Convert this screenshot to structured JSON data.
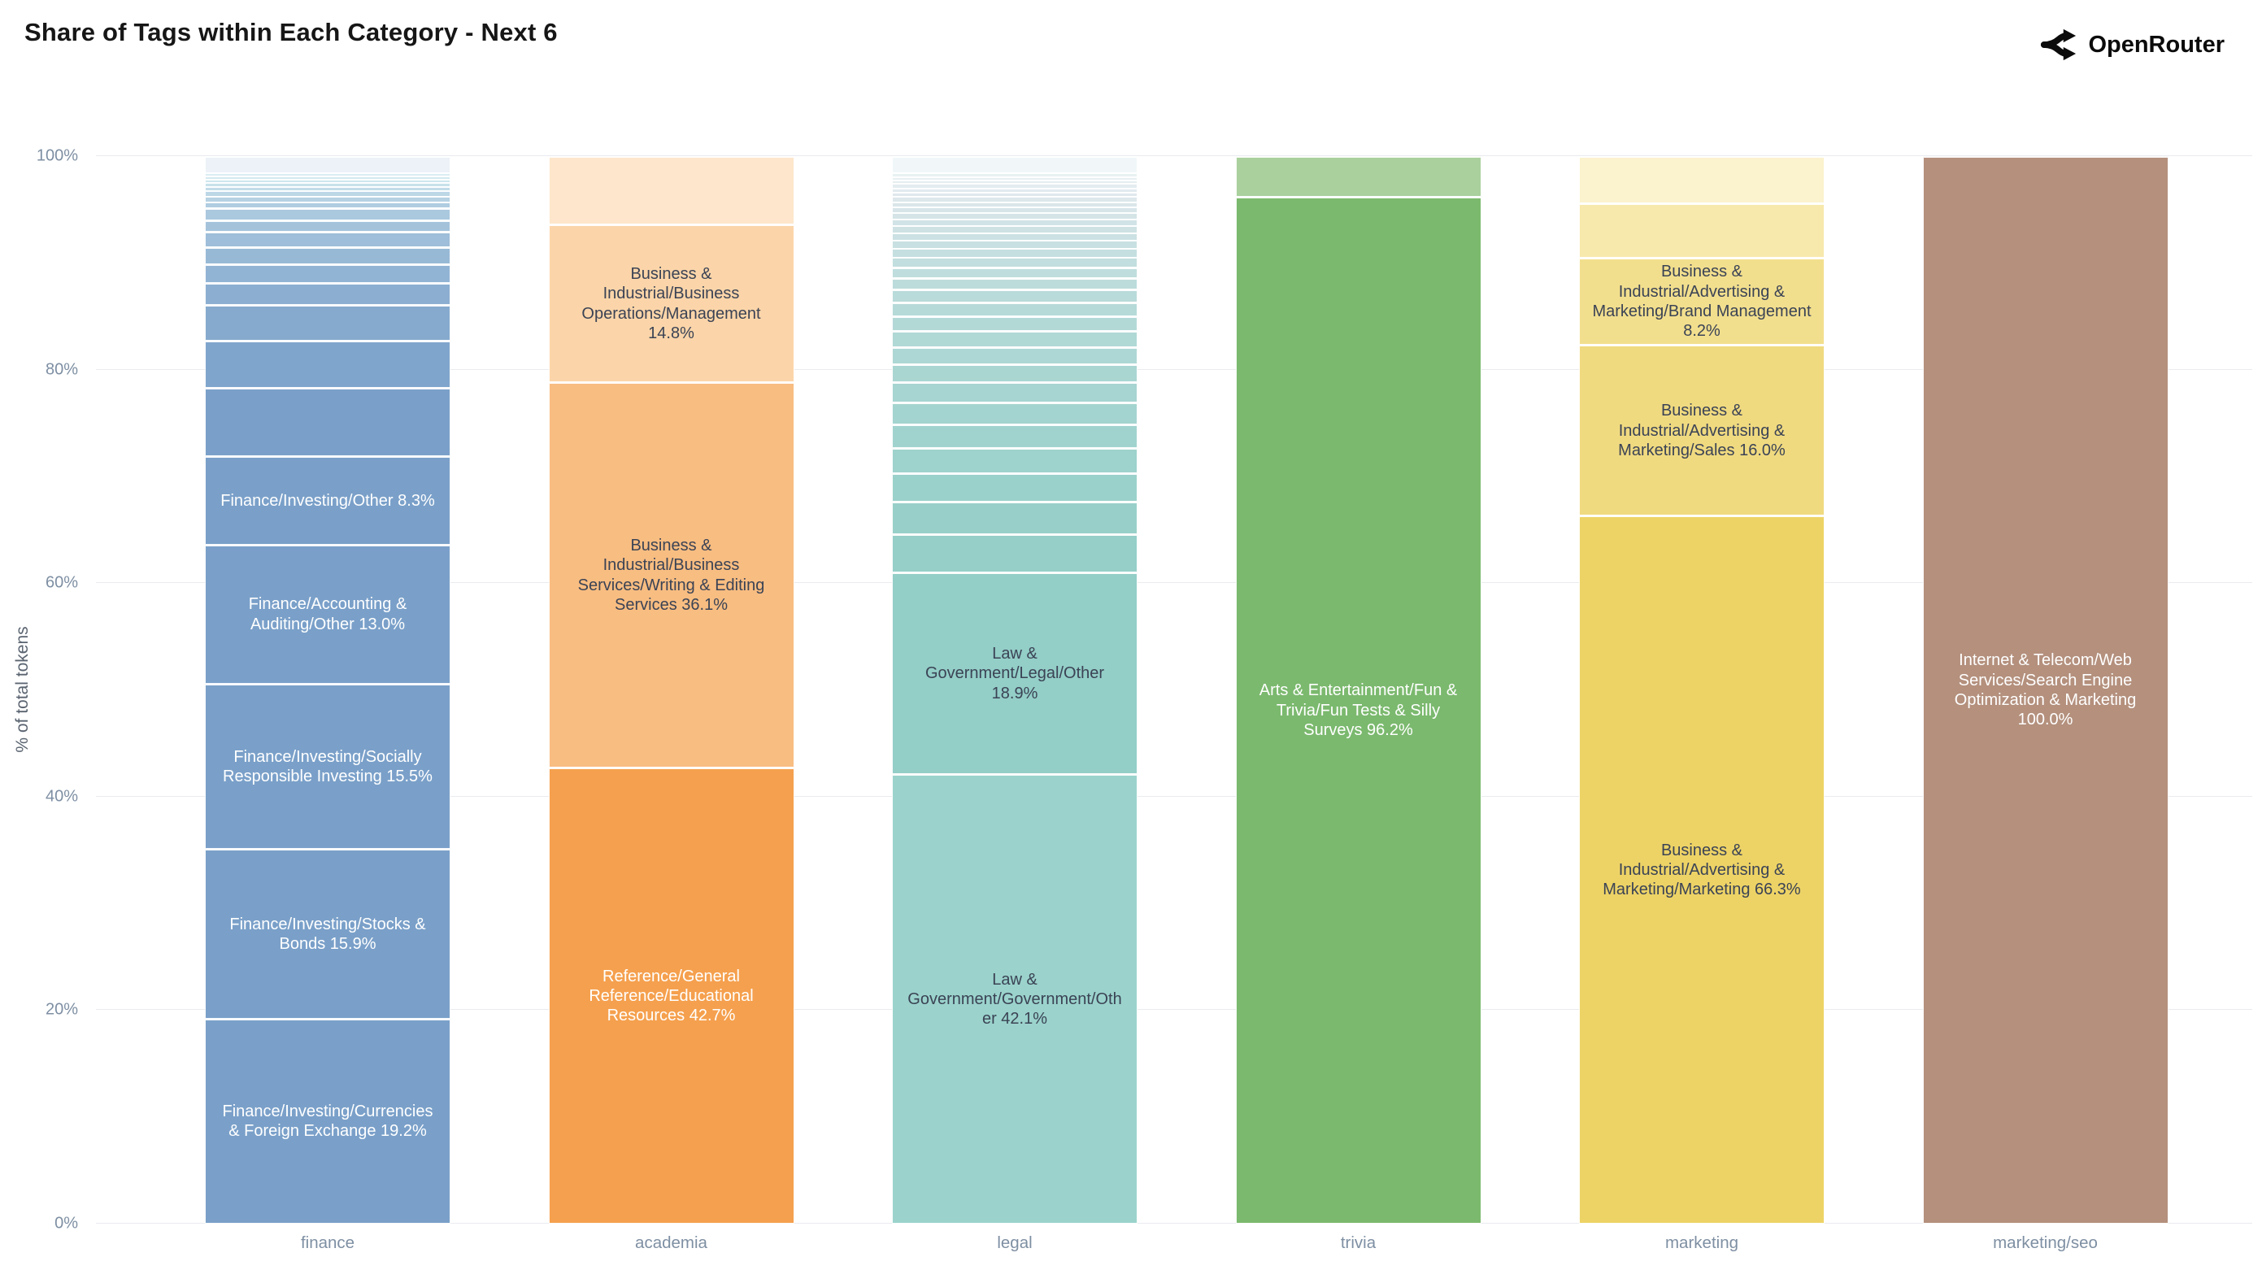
{
  "header": {
    "title": "Share of Tags within Each Category - Next 6",
    "brand": "OpenRouter"
  },
  "y_axis": {
    "label": "% of total tokens",
    "ticks": [
      "0%",
      "20%",
      "40%",
      "60%",
      "80%",
      "100%"
    ]
  },
  "colors": {
    "grid": "#e9ebef",
    "tick_text": "#7e8fa3",
    "dark_label": "#3b4355",
    "light_label": "#ffffff"
  },
  "chart_data": {
    "type": "bar",
    "stacked": true,
    "title": "Share of Tags within Each Category - Next 6",
    "xlabel": "",
    "ylabel": "% of total tokens",
    "ylim": [
      0,
      100
    ],
    "grid": true,
    "legend": false,
    "categories": [
      "finance",
      "academia",
      "legal",
      "trivia",
      "marketing",
      "marketing/seo"
    ],
    "bars": [
      {
        "category": "finance",
        "segments": [
          {
            "name": "Finance/Investing/Currencies & Foreign Exchange",
            "pct": 19.2,
            "color": "#7aa0c9",
            "text": "#ffffff"
          },
          {
            "name": "Finance/Investing/Stocks & Bonds",
            "pct": 15.9,
            "color": "#7aa0c9",
            "text": "#ffffff"
          },
          {
            "name": "Finance/Investing/Socially Responsible Investing",
            "pct": 15.5,
            "color": "#7aa0c9",
            "text": "#ffffff"
          },
          {
            "name": "Finance/Accounting & Auditing/Other",
            "pct": 13.0,
            "color": "#7aa0c9",
            "text": "#ffffff"
          },
          {
            "name": "Finance/Investing/Other",
            "pct": 8.3,
            "color": "#7aa0c9",
            "text": "#ffffff"
          },
          {
            "pct": 6.4,
            "color": "#7aa0c9"
          },
          {
            "pct": 4.4,
            "color": "#80a5cc"
          },
          {
            "pct": 3.4,
            "color": "#86aace"
          },
          {
            "pct": 2.0,
            "color": "#8cafd1"
          },
          {
            "pct": 1.8,
            "color": "#92b4d4"
          },
          {
            "pct": 1.6,
            "color": "#98b9d6"
          },
          {
            "pct": 1.4,
            "color": "#9ebed9"
          },
          {
            "pct": 1.1,
            "color": "#a4c3db"
          },
          {
            "pct": 1.1,
            "color": "#aac8de"
          },
          {
            "pct": 0.6,
            "color": "#b0cde1"
          },
          {
            "pct": 0.5,
            "color": "#b6d2e3"
          },
          {
            "pct": 0.5,
            "color": "#bcd7e6"
          },
          {
            "pct": 0.4,
            "color": "#c2dce8"
          },
          {
            "pct": 0.4,
            "color": "#c8e1eb"
          },
          {
            "pct": 0.3,
            "color": "#cee6ee"
          },
          {
            "pct": 0.3,
            "color": "#d4eaf0"
          },
          {
            "pct": 0.3,
            "color": "#daedf3"
          },
          {
            "pct": 1.6,
            "color": "#edf2f8"
          }
        ]
      },
      {
        "category": "academia",
        "segments": [
          {
            "name": "Reference/General Reference/Educational Resources",
            "pct": 42.7,
            "color": "#f5a04e",
            "text": "#ffffff"
          },
          {
            "name": "Business & Industrial/Business Services/Writing & Editing Services",
            "pct": 36.1,
            "color": "#f8bd81",
            "text": "#3b4355"
          },
          {
            "name": "Business & Industrial/Business Operations/Management",
            "pct": 14.8,
            "color": "#fbd5a9",
            "text": "#3b4355"
          },
          {
            "pct": 6.4,
            "color": "#fde6cb"
          }
        ]
      },
      {
        "category": "legal",
        "segments": [
          {
            "name": "Law & Government/Government/Other",
            "pct": 42.1,
            "color": "#9bd3cc",
            "text": "#3b4355"
          },
          {
            "name": "Law & Government/Legal/Other",
            "pct": 18.9,
            "color": "#93cec7",
            "text": "#3b4355"
          },
          {
            "pct": 3.6,
            "color": "#95cfc8"
          },
          {
            "pct": 3.0,
            "color": "#98d0c9"
          },
          {
            "pct": 2.7,
            "color": "#9bd1cb"
          },
          {
            "pct": 2.4,
            "color": "#9ed2cc"
          },
          {
            "pct": 2.2,
            "color": "#a1d3ce"
          },
          {
            "pct": 2.0,
            "color": "#a4d4cf"
          },
          {
            "pct": 1.9,
            "color": "#a7d5d1"
          },
          {
            "pct": 1.7,
            "color": "#aad6d2"
          },
          {
            "pct": 1.6,
            "color": "#add7d4"
          },
          {
            "pct": 1.5,
            "color": "#b0d8d5"
          },
          {
            "pct": 1.4,
            "color": "#b3d9d7"
          },
          {
            "pct": 1.3,
            "color": "#b6dad8"
          },
          {
            "pct": 1.2,
            "color": "#b9dbda"
          },
          {
            "pct": 1.1,
            "color": "#bcdcdb"
          },
          {
            "pct": 1.0,
            "color": "#bfdddd"
          },
          {
            "pct": 0.9,
            "color": "#c2dede"
          },
          {
            "pct": 0.8,
            "color": "#c5dfe0"
          },
          {
            "pct": 0.8,
            "color": "#c8e0e1"
          },
          {
            "pct": 0.7,
            "color": "#cbe1e3"
          },
          {
            "pct": 0.7,
            "color": "#cee2e4"
          },
          {
            "pct": 0.6,
            "color": "#d1e3e6"
          },
          {
            "pct": 0.6,
            "color": "#d4e4e7"
          },
          {
            "pct": 0.5,
            "color": "#d7e5e9"
          },
          {
            "pct": 0.5,
            "color": "#dae6ea"
          },
          {
            "pct": 0.5,
            "color": "#dde7ec"
          },
          {
            "pct": 0.4,
            "color": "#e0e8ed"
          },
          {
            "pct": 0.4,
            "color": "#e2eaee"
          },
          {
            "pct": 0.4,
            "color": "#e4ecef"
          },
          {
            "pct": 0.3,
            "color": "#e6eef0"
          },
          {
            "pct": 0.3,
            "color": "#e7f0f1"
          },
          {
            "pct": 0.4,
            "color": "#e8f2f2"
          },
          {
            "pct": 1.6,
            "color": "#f1f7f8"
          }
        ]
      },
      {
        "category": "trivia",
        "segments": [
          {
            "name": "Arts & Entertainment/Fun & Trivia/Fun Tests & Silly Surveys",
            "pct": 96.2,
            "color": "#7bb96e",
            "text": "#ffffff"
          },
          {
            "pct": 3.8,
            "color": "#a9d09d"
          }
        ]
      },
      {
        "category": "marketing",
        "segments": [
          {
            "name": "Business & Industrial/Advertising & Marketing/Marketing",
            "pct": 66.3,
            "color": "#edd366",
            "text": "#3b4355"
          },
          {
            "name": "Business & Industrial/Advertising & Marketing/Sales",
            "pct": 16.0,
            "color": "#f0da80",
            "text": "#3b4355"
          },
          {
            "name": "Business & Industrial/Advertising & Marketing/Brand Management",
            "pct": 8.2,
            "color": "#f2df8e",
            "text": "#3b4355"
          },
          {
            "pct": 5.1,
            "color": "#f7e8ac"
          },
          {
            "pct": 4.4,
            "color": "#fbf2ce"
          }
        ]
      },
      {
        "category": "marketing/seo",
        "segments": [
          {
            "name": "Internet & Telecom/Web Services/Search Engine Optimization & Marketing",
            "pct": 100.0,
            "color": "#b4907d",
            "text": "#ffffff"
          }
        ]
      }
    ]
  }
}
